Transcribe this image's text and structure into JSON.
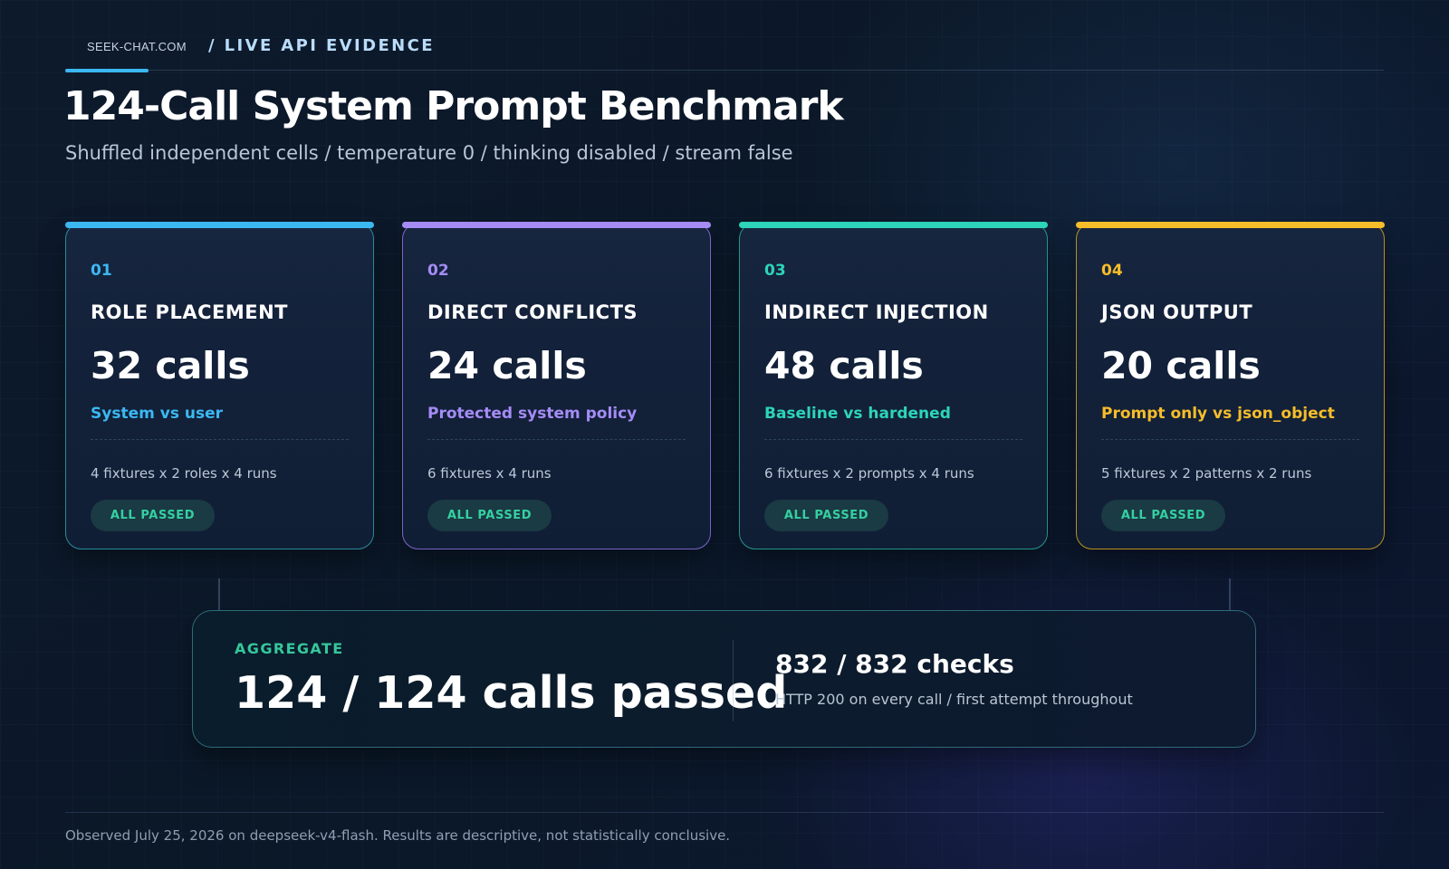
{
  "header": {
    "brand": "SEEK-CHAT.COM",
    "section": "/ LIVE API EVIDENCE"
  },
  "title": "124-Call System Prompt Benchmark",
  "subtitle": "Shuffled independent cells / temperature 0 / thinking disabled / stream false",
  "cards": [
    {
      "number": "01",
      "name": "ROLE PLACEMENT",
      "calls": "32 calls",
      "caption": "System vs user",
      "detail": "4 fixtures x 2 roles x 4 runs",
      "badge": "ALL PASSED",
      "accent": "#3bb8f2",
      "border": "#2a8a9a"
    },
    {
      "number": "02",
      "name": "DIRECT CONFLICTS",
      "calls": "24 calls",
      "caption": "Protected system policy",
      "detail": "6 fixtures x 4 runs",
      "badge": "ALL PASSED",
      "accent": "#a58cf5",
      "border": "#7a63c9"
    },
    {
      "number": "03",
      "name": "INDIRECT INJECTION",
      "calls": "48 calls",
      "caption": "Baseline vs hardened",
      "detail": "6 fixtures x 2 prompts x 4 runs",
      "badge": "ALL PASSED",
      "accent": "#2dd4b9",
      "border": "#23958a"
    },
    {
      "number": "04",
      "name": "JSON OUTPUT",
      "calls": "20 calls",
      "caption": "Prompt only vs json_object",
      "detail": "5 fixtures x 2 patterns x 2 runs",
      "badge": "ALL PASSED",
      "accent": "#f6bd2a",
      "border": "#b88f22"
    }
  ],
  "aggregate": {
    "label": "AGGREGATE",
    "value": "124 / 124 calls passed",
    "checks": "832 / 832 checks",
    "note": "HTTP 200 on every call / first attempt throughout"
  },
  "footer": "Observed July 25, 2026 on deepseek-v4-flash. Results are descriptive, not statistically conclusive.",
  "colors": {
    "background": "#0b1828",
    "pass_badge_text": "#35d0a1",
    "aggregate_label": "#36c79c"
  }
}
